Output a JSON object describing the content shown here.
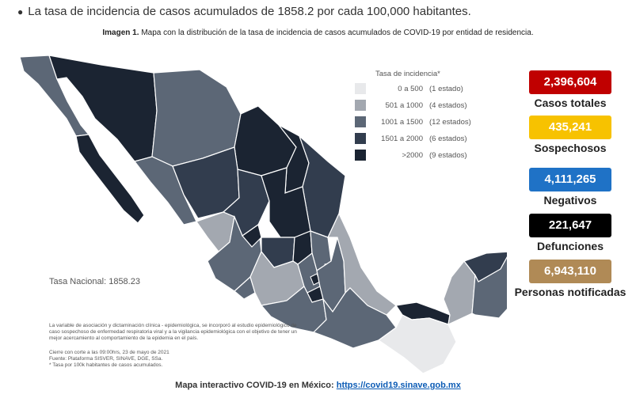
{
  "header": {
    "bullet": "La tasa de incidencia de casos acumulados de 1858.2 por cada 100,000 habitantes."
  },
  "caption": {
    "label": "Imagen 1.",
    "text": "Mapa con la distribución de la tasa de incidencia de casos acumulados de COVID-19 por entidad de residencia."
  },
  "legend": {
    "title": "Tasa de incidencia*",
    "items": [
      {
        "range": "0 a  500",
        "count": "(1 estado)",
        "color": "#e8e9eb"
      },
      {
        "range": "501 a  1000",
        "count": "(4 estados)",
        "color": "#a3a8b0"
      },
      {
        "range": "1001 a  1500",
        "count": "(12 estados)",
        "color": "#5c6776"
      },
      {
        "range": "1501 a  2000",
        "count": "(6 estados)",
        "color": "#323d4e"
      },
      {
        "range": ">2000",
        "count": "(9 estados)",
        "color": "#1b2432"
      }
    ]
  },
  "stats": [
    {
      "value": "2,396,604",
      "label": "Casos totales",
      "color": "#c00000"
    },
    {
      "value": "435,241",
      "label": "Sospechosos",
      "color": "#f7c200"
    },
    {
      "value": "4,111,265",
      "label": "Negativos",
      "color": "#1f72c6"
    },
    {
      "value": "221,647",
      "label": "Defunciones",
      "color": "#000000"
    },
    {
      "value": "6,943,110",
      "label": "Personas notificadas",
      "color": "#b08a56"
    }
  ],
  "tasa_nacional": "Tasa Nacional: 1858.23",
  "notes": {
    "method": "La variable de asociación y dictaminación clínica - epidemiológica, se incorporó al estudio epidemiológico de caso sospechoso de enfermedad respiratoria viral y a la vigilancia epidemiológica con el objetivo de tener un mejor acercamiento al comportamiento de la epidemia en el país.",
    "cutoff": "Cierre con corte a las 09:00hrs, 23 de mayo de 2021",
    "source": "Fuente: Plataforma SISVER, SINAVE, DGE, SSa.",
    "rate": "* Tasa por 100k habitantes de casos acumulados."
  },
  "footer": {
    "label": "Mapa interactivo COVID-19 en México:",
    "link": "https://covid19.sinave.gob.mx"
  }
}
